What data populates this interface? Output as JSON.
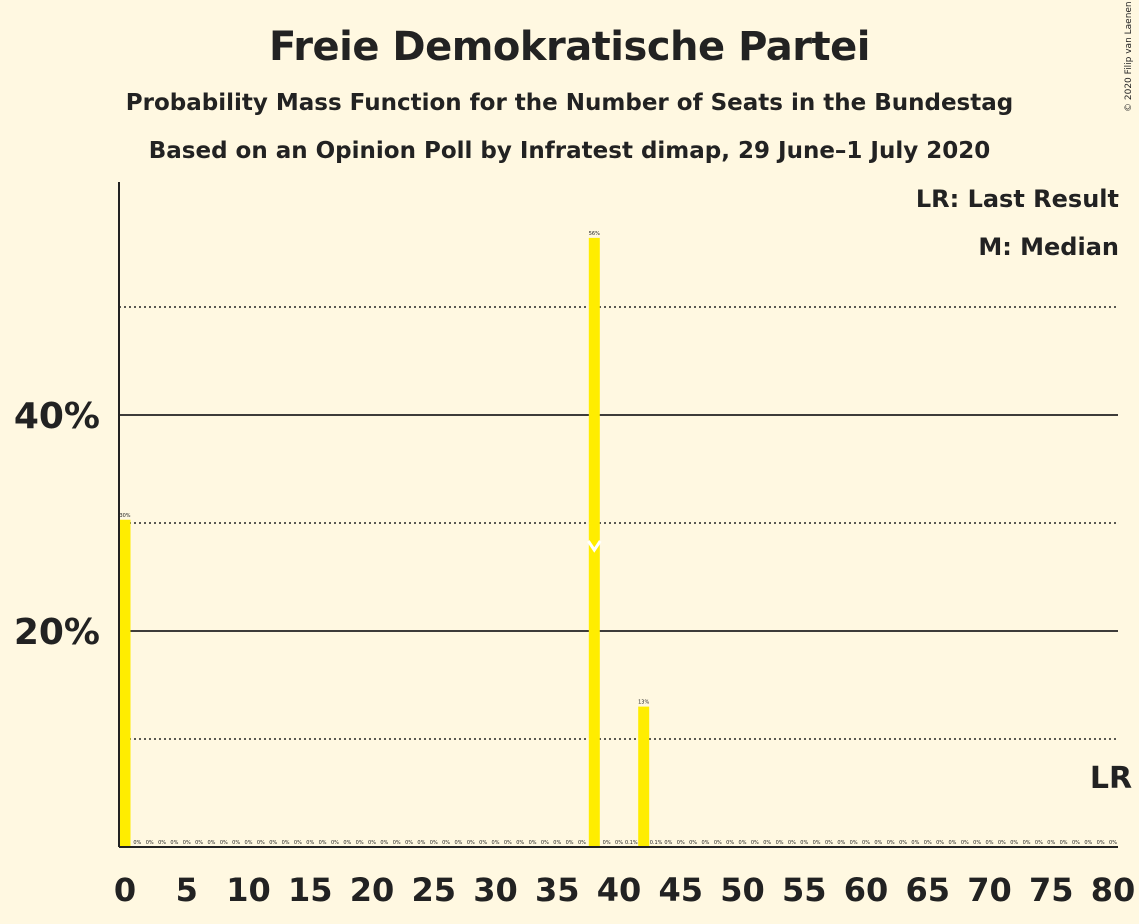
{
  "title": "Freie Demokratische Partei",
  "subtitle": "Probability Mass Function for the Number of Seats in the Bundestag",
  "subtitle2": "Based on an Opinion Poll by Infratest dimap, 29 June–1 July 2020",
  "copyright": "© 2020 Filip van Laenen",
  "legend": {
    "last_result": "LR: Last Result",
    "median": "M: Median"
  },
  "colors": {
    "bar": "#FFED00",
    "background": "#FFF8E1",
    "text": "#222222",
    "median_marker": "#FFFFFF"
  },
  "chart_data": {
    "type": "bar",
    "xlim": [
      0,
      80
    ],
    "ylim": [
      0,
      60
    ],
    "x_ticks": [
      0,
      5,
      10,
      15,
      20,
      25,
      30,
      35,
      40,
      45,
      50,
      55,
      60,
      65,
      70,
      75,
      80
    ],
    "y_ticks_labeled": [
      {
        "value": 20,
        "label": "20%"
      },
      {
        "value": 40,
        "label": "40%"
      }
    ],
    "y_gridlines_solid": [
      20,
      40
    ],
    "y_gridlines_dotted": [
      10,
      30,
      50
    ],
    "values": [
      30.3,
      0,
      0,
      0,
      0,
      0,
      0,
      0,
      0,
      0,
      0,
      0,
      0,
      0,
      0,
      0,
      0,
      0,
      0,
      0,
      0,
      0,
      0,
      0,
      0,
      0,
      0,
      0,
      0,
      0,
      0,
      0,
      0,
      0,
      0,
      0,
      0,
      0,
      56.4,
      0,
      0,
      0.1,
      13,
      0.1,
      0,
      0,
      0,
      0,
      0,
      0,
      0,
      0,
      0,
      0,
      0,
      0,
      0,
      0,
      0,
      0,
      0,
      0,
      0,
      0,
      0,
      0,
      0,
      0,
      0,
      0,
      0,
      0,
      0,
      0,
      0,
      0,
      0,
      0,
      0,
      0,
      0
    ],
    "value_labels": [
      "30%",
      "0%",
      "0%",
      "0%",
      "0%",
      "0%",
      "0%",
      "0%",
      "0%",
      "0%",
      "0%",
      "0%",
      "0%",
      "0%",
      "0%",
      "0%",
      "0%",
      "0%",
      "0%",
      "0%",
      "0%",
      "0%",
      "0%",
      "0%",
      "0%",
      "0%",
      "0%",
      "0%",
      "0%",
      "0%",
      "0%",
      "0%",
      "0%",
      "0%",
      "0%",
      "0%",
      "0%",
      "0%",
      "56%",
      "0%",
      "0%",
      "0.1%",
      "13%",
      "0.1%",
      "0%",
      "0%",
      "0%",
      "0%",
      "0%",
      "0%",
      "0%",
      "0%",
      "0%",
      "0%",
      "0%",
      "0%",
      "0%",
      "0%",
      "0%",
      "0%",
      "0%",
      "0%",
      "0%",
      "0%",
      "0%",
      "0%",
      "0%",
      "0%",
      "0%",
      "0%",
      "0%",
      "0%",
      "0%",
      "0%",
      "0%",
      "0%",
      "0%",
      "0%",
      "0%",
      "0%",
      "0%"
    ],
    "median": 38,
    "last_result": 80,
    "last_result_label": "LR"
  }
}
